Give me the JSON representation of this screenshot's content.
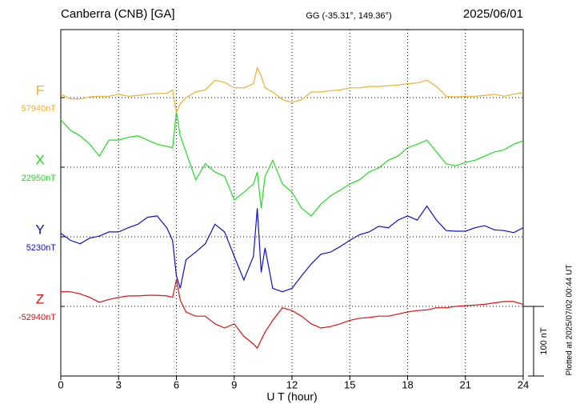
{
  "chart_data": {
    "type": "line",
    "title": "Canberra (CNB)  [GA]",
    "subtitle": "GG (-35.31°, 149.36°)",
    "date": "2025/06/01",
    "xlabel": "U T (hour)",
    "footnote": "Plotted at 2025/07/02 00:44 UT",
    "xlim": [
      0,
      24
    ],
    "xticks": [
      0,
      3,
      6,
      9,
      12,
      15,
      18,
      21,
      24
    ],
    "grid": true,
    "scale_bar": {
      "value": 100,
      "label": "100 nT"
    },
    "x": [
      0,
      0.5,
      1,
      1.5,
      2,
      2.5,
      3,
      3.5,
      4,
      4.5,
      5,
      5.5,
      5.8,
      6,
      6.2,
      6.5,
      7,
      7.5,
      8,
      8.5,
      9,
      9.5,
      10,
      10.2,
      10.4,
      10.6,
      11,
      11.5,
      12,
      12.5,
      13,
      13.5,
      14,
      14.5,
      15,
      15.5,
      16,
      16.5,
      17,
      17.5,
      18,
      18.5,
      19,
      19.5,
      20,
      20.5,
      21,
      21.5,
      22,
      22.5,
      23,
      23.5,
      24
    ],
    "series": [
      {
        "name": "F",
        "color": "#f0b030",
        "baseline": {
          "value": 57940,
          "label": "57940nT"
        },
        "values": [
          57945,
          57938,
          57938,
          57941,
          57942,
          57942,
          57945,
          57942,
          57943,
          57945,
          57946,
          57946,
          57951,
          57919,
          57931,
          57940,
          57948,
          57951,
          57965,
          57962,
          57954,
          57954,
          57960,
          57983,
          57971,
          57954,
          57948,
          57937,
          57933,
          57937,
          57948,
          57948,
          57950,
          57951,
          57954,
          57954,
          57956,
          57956,
          57957,
          57958,
          57960,
          57961,
          57965,
          57956,
          57942,
          57941,
          57942,
          57942,
          57943,
          57945,
          57942,
          57945,
          57947
        ]
      },
      {
        "name": "X",
        "color": "#22dd22",
        "baseline": {
          "value": 22950,
          "label": "22950nT"
        },
        "values": [
          23018,
          23003,
          22995,
          22983,
          22966,
          22989,
          22989,
          22993,
          22995,
          22989,
          22983,
          22980,
          22978,
          23029,
          22995,
          22972,
          22932,
          22955,
          22943,
          22937,
          22903,
          22914,
          22926,
          22943,
          22891,
          22937,
          22960,
          22926,
          22914,
          22891,
          22880,
          22897,
          22909,
          22917,
          22926,
          22932,
          22943,
          22949,
          22960,
          22966,
          22978,
          22983,
          22989,
          22972,
          22955,
          22952,
          22957,
          22960,
          22966,
          22972,
          22975,
          22983,
          22988
        ]
      },
      {
        "name": "Y",
        "color": "#1010cc",
        "baseline": {
          "value": 5230,
          "label": "5230nT"
        },
        "values": [
          5235,
          5225,
          5220,
          5228,
          5231,
          5237,
          5237,
          5243,
          5248,
          5258,
          5260,
          5243,
          5225,
          5174,
          5156,
          5197,
          5208,
          5220,
          5248,
          5237,
          5202,
          5168,
          5202,
          5271,
          5179,
          5214,
          5156,
          5151,
          5156,
          5174,
          5191,
          5205,
          5208,
          5216,
          5225,
          5233,
          5237,
          5245,
          5243,
          5254,
          5260,
          5254,
          5274,
          5254,
          5239,
          5238,
          5238,
          5243,
          5246,
          5240,
          5239,
          5236,
          5243
        ]
      },
      {
        "name": "Z",
        "color": "#dd1111",
        "baseline": {
          "value": -52940,
          "label": "-52940nT"
        },
        "values": [
          -52919,
          -52919,
          -52922,
          -52927,
          -52934,
          -52930,
          -52927,
          -52925,
          -52925,
          -52924,
          -52924,
          -52925,
          -52927,
          -52902,
          -52931,
          -52948,
          -52954,
          -52954,
          -52965,
          -52971,
          -52965,
          -52983,
          -52994,
          -53000,
          -52988,
          -52977,
          -52960,
          -52942,
          -52946,
          -52954,
          -52965,
          -52971,
          -52969,
          -52965,
          -52960,
          -52957,
          -52956,
          -52954,
          -52954,
          -52951,
          -52948,
          -52946,
          -52945,
          -52942,
          -52942,
          -52940,
          -52939,
          -52938,
          -52937,
          -52935,
          -52933,
          -52933,
          -52937
        ]
      }
    ]
  }
}
